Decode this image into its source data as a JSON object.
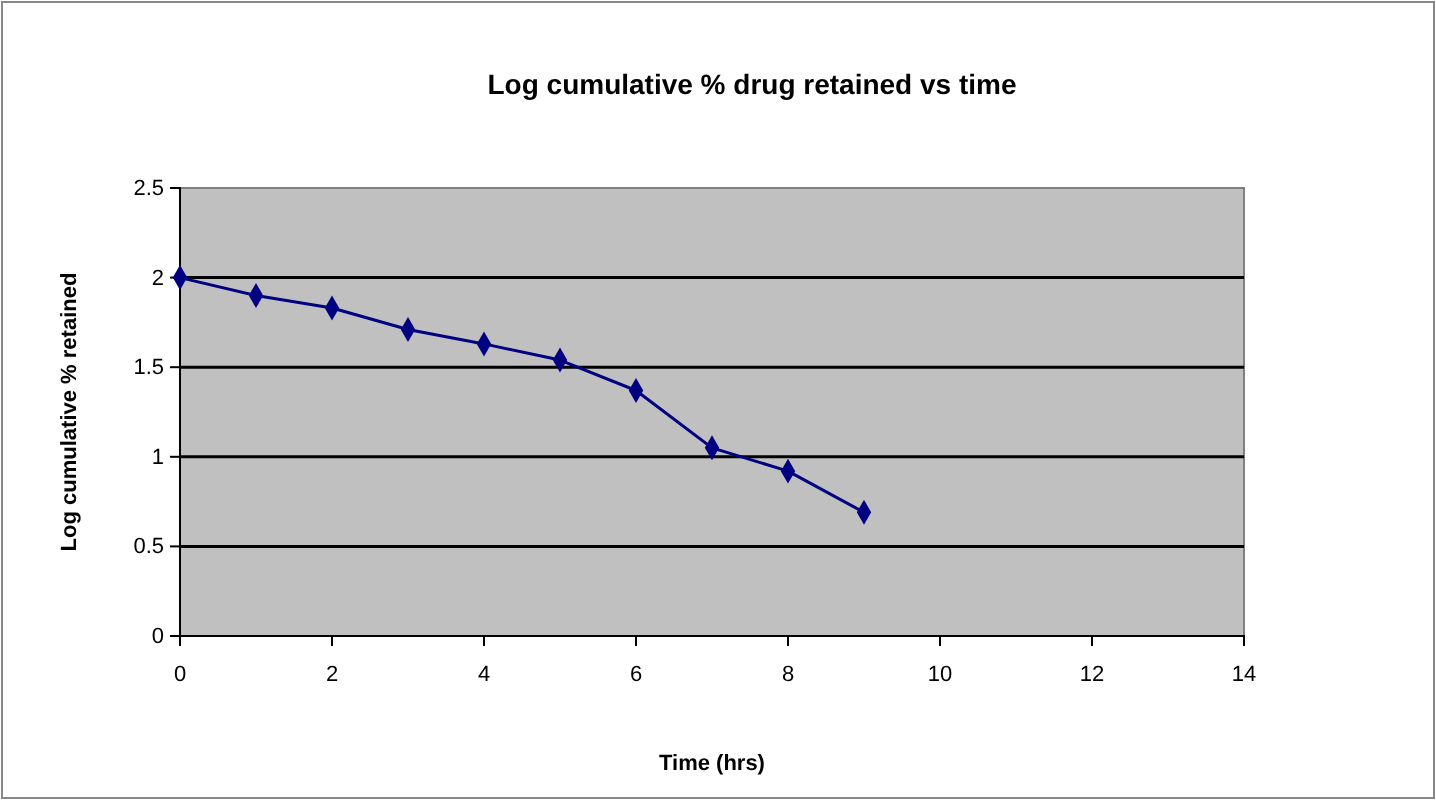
{
  "chart_data": {
    "type": "line",
    "title": "Log cumulative % drug retained vs time",
    "xlabel": "Time (hrs)",
    "ylabel": "Log cumulative  % retained",
    "x": [
      0,
      1,
      2,
      3,
      4,
      5,
      6,
      7,
      8,
      9
    ],
    "series": [
      {
        "color": "#000080",
        "values": [
          2.0,
          1.9,
          1.83,
          1.71,
          1.63,
          1.54,
          1.37,
          1.05,
          0.92,
          0.69
        ]
      }
    ],
    "xlim": [
      0,
      14
    ],
    "xticks": [
      0,
      2,
      4,
      6,
      8,
      10,
      12,
      14
    ],
    "ylim": [
      0,
      2.5
    ],
    "yticks": [
      0,
      0.5,
      1,
      1.5,
      2,
      2.5
    ],
    "grid": "y",
    "marker": "diamond",
    "line_style": "solid"
  }
}
